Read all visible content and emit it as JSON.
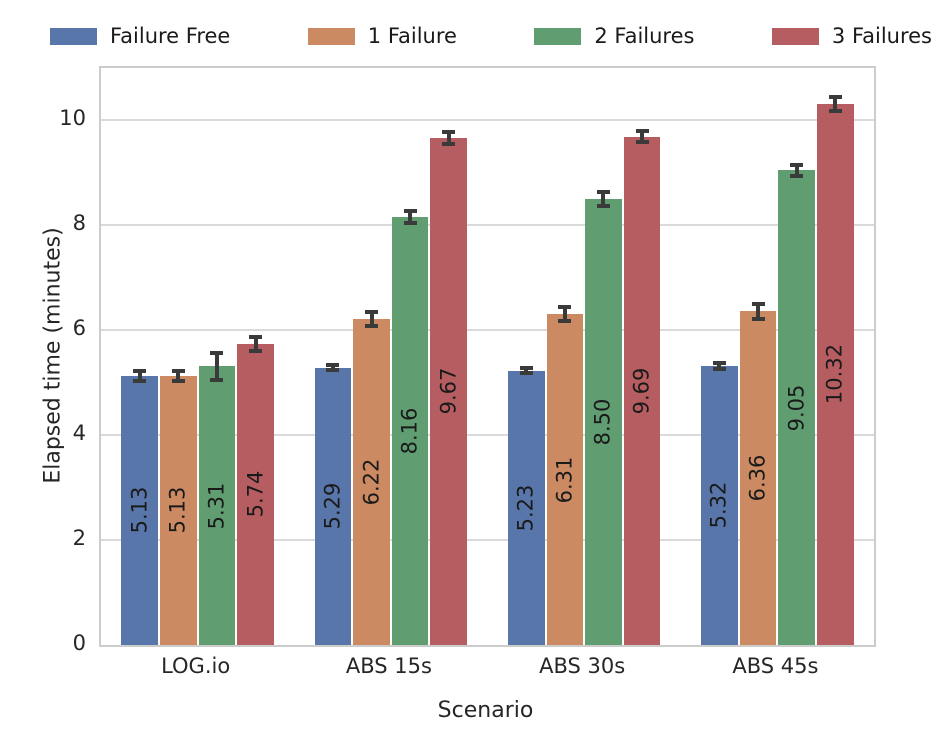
{
  "chart_data": {
    "type": "bar",
    "title": "",
    "xlabel": "Scenario",
    "ylabel": "Elapsed time (minutes)",
    "categories": [
      "LOG.io",
      "ABS 15s",
      "ABS 30s",
      "ABS 45s"
    ],
    "series": [
      {
        "name": "Failure Free",
        "color": "#5876A9",
        "values": [
          5.13,
          5.29,
          5.23,
          5.32
        ],
        "errors": [
          0.09,
          0.05,
          0.05,
          0.05
        ]
      },
      {
        "name": "1 Failure",
        "color": "#CC8A63",
        "values": [
          5.13,
          6.22,
          6.31,
          6.36
        ],
        "errors": [
          0.1,
          0.13,
          0.13,
          0.15
        ]
      },
      {
        "name": "2 Failures",
        "color": "#609E72",
        "values": [
          5.31,
          8.16,
          8.5,
          9.05
        ],
        "errors": [
          0.25,
          0.12,
          0.13,
          0.1
        ]
      },
      {
        "name": "3 Failures",
        "color": "#B55D61",
        "values": [
          5.74,
          9.67,
          9.69,
          10.32
        ],
        "errors": [
          0.14,
          0.11,
          0.1,
          0.13
        ]
      }
    ],
    "bar_value_labels": [
      [
        "5.13",
        "5.29",
        "5.23",
        "5.32"
      ],
      [
        "5.13",
        "6.22",
        "6.31",
        "6.36"
      ],
      [
        "5.31",
        "8.16",
        "8.50",
        "9.05"
      ],
      [
        "5.74",
        "9.67",
        "9.69",
        "10.32"
      ]
    ],
    "ylim": [
      0,
      11
    ],
    "yticks": [
      0,
      2,
      4,
      6,
      8,
      10
    ],
    "grid": true,
    "legend_position": "top",
    "colors": {
      "error_bar": "#3A3A3A",
      "grid_line": "#DADADA",
      "spine": "#CCCCCC",
      "tick_text": "#262626",
      "bar_label_text": "#1A1A1A"
    }
  }
}
